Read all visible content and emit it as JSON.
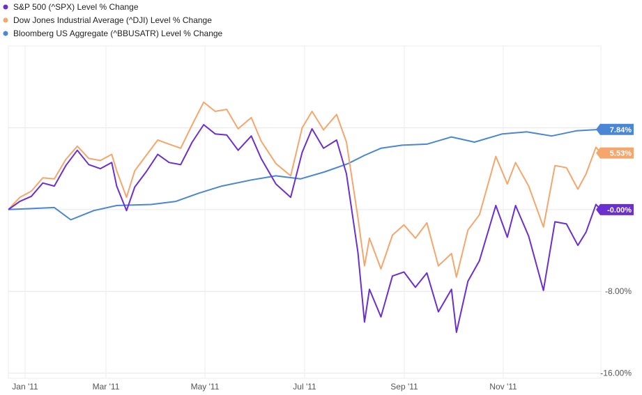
{
  "chart_data": {
    "type": "line",
    "x_ticks": [
      "Jan '11",
      "Mar '11",
      "May '11",
      "Jul '11",
      "Sep '11",
      "Nov '11"
    ],
    "y_ticks": [
      {
        "value": 8,
        "label": "8.00%"
      },
      {
        "value": 0,
        "label": "0.00%"
      },
      {
        "value": -8,
        "label": "-8.00%"
      },
      {
        "value": -16,
        "label": "-16.00%"
      }
    ],
    "ylim": [
      -16.5,
      16
    ],
    "x_range": [
      "2011-01-03",
      "2011-12-30"
    ],
    "grid": true,
    "legend_position": "top-left",
    "series": [
      {
        "name": "S&P 500 (^SPX) Level % Change",
        "color": "#6a2fd0",
        "end_label": "-0.00%",
        "end_value": 0.0,
        "points": [
          [
            "2011-01-03",
            0
          ],
          [
            "2011-01-10",
            0.8
          ],
          [
            "2011-01-17",
            1.3
          ],
          [
            "2011-01-24",
            2.6
          ],
          [
            "2011-01-31",
            2.3
          ],
          [
            "2011-02-07",
            4.3
          ],
          [
            "2011-02-14",
            5.8
          ],
          [
            "2011-02-21",
            4.4
          ],
          [
            "2011-02-28",
            4.0
          ],
          [
            "2011-03-07",
            4.6
          ],
          [
            "2011-03-10",
            2.3
          ],
          [
            "2011-03-16",
            -0.1
          ],
          [
            "2011-03-21",
            2.2
          ],
          [
            "2011-03-28",
            3.7
          ],
          [
            "2011-04-04",
            5.4
          ],
          [
            "2011-04-11",
            4.6
          ],
          [
            "2011-04-18",
            4.4
          ],
          [
            "2011-04-25",
            6.6
          ],
          [
            "2011-05-02",
            8.3
          ],
          [
            "2011-05-09",
            7.4
          ],
          [
            "2011-05-16",
            7.3
          ],
          [
            "2011-05-23",
            5.8
          ],
          [
            "2011-05-31",
            7.2
          ],
          [
            "2011-06-06",
            5.0
          ],
          [
            "2011-06-15",
            2.5
          ],
          [
            "2011-06-24",
            1.2
          ],
          [
            "2011-07-01",
            5.6
          ],
          [
            "2011-07-07",
            7.9
          ],
          [
            "2011-07-14",
            6.0
          ],
          [
            "2011-07-22",
            6.8
          ],
          [
            "2011-07-28",
            3.5
          ],
          [
            "2011-08-04",
            -4.2
          ],
          [
            "2011-08-08",
            -11.0
          ],
          [
            "2011-08-11",
            -7.8
          ],
          [
            "2011-08-18",
            -10.5
          ],
          [
            "2011-08-25",
            -6.5
          ],
          [
            "2011-09-01",
            -6.1
          ],
          [
            "2011-09-08",
            -7.6
          ],
          [
            "2011-09-15",
            -6.2
          ],
          [
            "2011-09-22",
            -10.0
          ],
          [
            "2011-09-30",
            -7.8
          ],
          [
            "2011-10-03",
            -12.0
          ],
          [
            "2011-10-10",
            -7.0
          ],
          [
            "2011-10-17",
            -5.0
          ],
          [
            "2011-10-27",
            0.4
          ],
          [
            "2011-11-03",
            -2.7
          ],
          [
            "2011-11-08",
            0.4
          ],
          [
            "2011-11-16",
            -2.6
          ],
          [
            "2011-11-25",
            -7.9
          ],
          [
            "2011-12-02",
            -1.2
          ],
          [
            "2011-12-09",
            -1.4
          ],
          [
            "2011-12-16",
            -3.5
          ],
          [
            "2011-12-21",
            -2.2
          ],
          [
            "2011-12-27",
            0.5
          ],
          [
            "2011-12-30",
            0.0
          ]
        ]
      },
      {
        "name": "Dow Jones Industrial Average (^DJI) Level % Change",
        "color": "#f5a66c",
        "end_label": "5.53%",
        "end_value": 5.53,
        "points": [
          [
            "2011-01-03",
            0
          ],
          [
            "2011-01-10",
            1.2
          ],
          [
            "2011-01-17",
            1.8
          ],
          [
            "2011-01-24",
            3.1
          ],
          [
            "2011-01-31",
            3.0
          ],
          [
            "2011-02-07",
            4.9
          ],
          [
            "2011-02-14",
            6.2
          ],
          [
            "2011-02-21",
            5.0
          ],
          [
            "2011-02-28",
            4.8
          ],
          [
            "2011-03-07",
            5.4
          ],
          [
            "2011-03-10",
            3.8
          ],
          [
            "2011-03-16",
            1.2
          ],
          [
            "2011-03-21",
            3.8
          ],
          [
            "2011-03-28",
            5.3
          ],
          [
            "2011-04-04",
            6.8
          ],
          [
            "2011-04-11",
            6.4
          ],
          [
            "2011-04-18",
            6.0
          ],
          [
            "2011-04-25",
            8.3
          ],
          [
            "2011-05-02",
            10.5
          ],
          [
            "2011-05-09",
            9.6
          ],
          [
            "2011-05-16",
            9.8
          ],
          [
            "2011-05-23",
            7.9
          ],
          [
            "2011-05-31",
            9.0
          ],
          [
            "2011-06-06",
            6.7
          ],
          [
            "2011-06-15",
            4.5
          ],
          [
            "2011-06-24",
            3.3
          ],
          [
            "2011-07-01",
            8.0
          ],
          [
            "2011-07-07",
            9.6
          ],
          [
            "2011-07-14",
            7.8
          ],
          [
            "2011-07-22",
            9.3
          ],
          [
            "2011-07-28",
            6.6
          ],
          [
            "2011-08-04",
            -0.8
          ],
          [
            "2011-08-08",
            -5.5
          ],
          [
            "2011-08-11",
            -2.8
          ],
          [
            "2011-08-18",
            -5.8
          ],
          [
            "2011-08-25",
            -2.5
          ],
          [
            "2011-09-01",
            -1.5
          ],
          [
            "2011-09-08",
            -2.8
          ],
          [
            "2011-09-15",
            -1.3
          ],
          [
            "2011-09-22",
            -5.5
          ],
          [
            "2011-09-30",
            -4.3
          ],
          [
            "2011-10-03",
            -6.6
          ],
          [
            "2011-10-10",
            -2.0
          ],
          [
            "2011-10-17",
            -0.5
          ],
          [
            "2011-10-27",
            5.2
          ],
          [
            "2011-11-03",
            2.5
          ],
          [
            "2011-11-08",
            4.6
          ],
          [
            "2011-11-16",
            2.3
          ],
          [
            "2011-11-25",
            -1.7
          ],
          [
            "2011-12-02",
            4.3
          ],
          [
            "2011-12-09",
            4.1
          ],
          [
            "2011-12-16",
            2.0
          ],
          [
            "2011-12-21",
            3.5
          ],
          [
            "2011-12-27",
            6.1
          ],
          [
            "2011-12-30",
            5.53
          ]
        ]
      },
      {
        "name": "Bloomberg US Aggregate (^BBUSATR) Level % Change",
        "color": "#4a86d4",
        "end_label": "7.84%",
        "end_value": 7.84,
        "points": [
          [
            "2011-01-03",
            0
          ],
          [
            "2011-01-17",
            0.1
          ],
          [
            "2011-01-31",
            0.2
          ],
          [
            "2011-02-10",
            -1.0
          ],
          [
            "2011-02-24",
            -0.1
          ],
          [
            "2011-03-10",
            0.4
          ],
          [
            "2011-03-31",
            0.5
          ],
          [
            "2011-04-15",
            0.8
          ],
          [
            "2011-04-29",
            1.6
          ],
          [
            "2011-05-13",
            2.3
          ],
          [
            "2011-05-31",
            2.9
          ],
          [
            "2011-06-15",
            3.3
          ],
          [
            "2011-06-30",
            3.0
          ],
          [
            "2011-07-15",
            3.7
          ],
          [
            "2011-07-29",
            4.5
          ],
          [
            "2011-08-08",
            5.3
          ],
          [
            "2011-08-18",
            6.0
          ],
          [
            "2011-08-31",
            6.3
          ],
          [
            "2011-09-15",
            6.4
          ],
          [
            "2011-09-30",
            7.1
          ],
          [
            "2011-10-14",
            6.6
          ],
          [
            "2011-10-31",
            7.4
          ],
          [
            "2011-11-15",
            7.6
          ],
          [
            "2011-11-30",
            7.2
          ],
          [
            "2011-12-15",
            7.7
          ],
          [
            "2011-12-30",
            7.84
          ]
        ]
      }
    ]
  }
}
